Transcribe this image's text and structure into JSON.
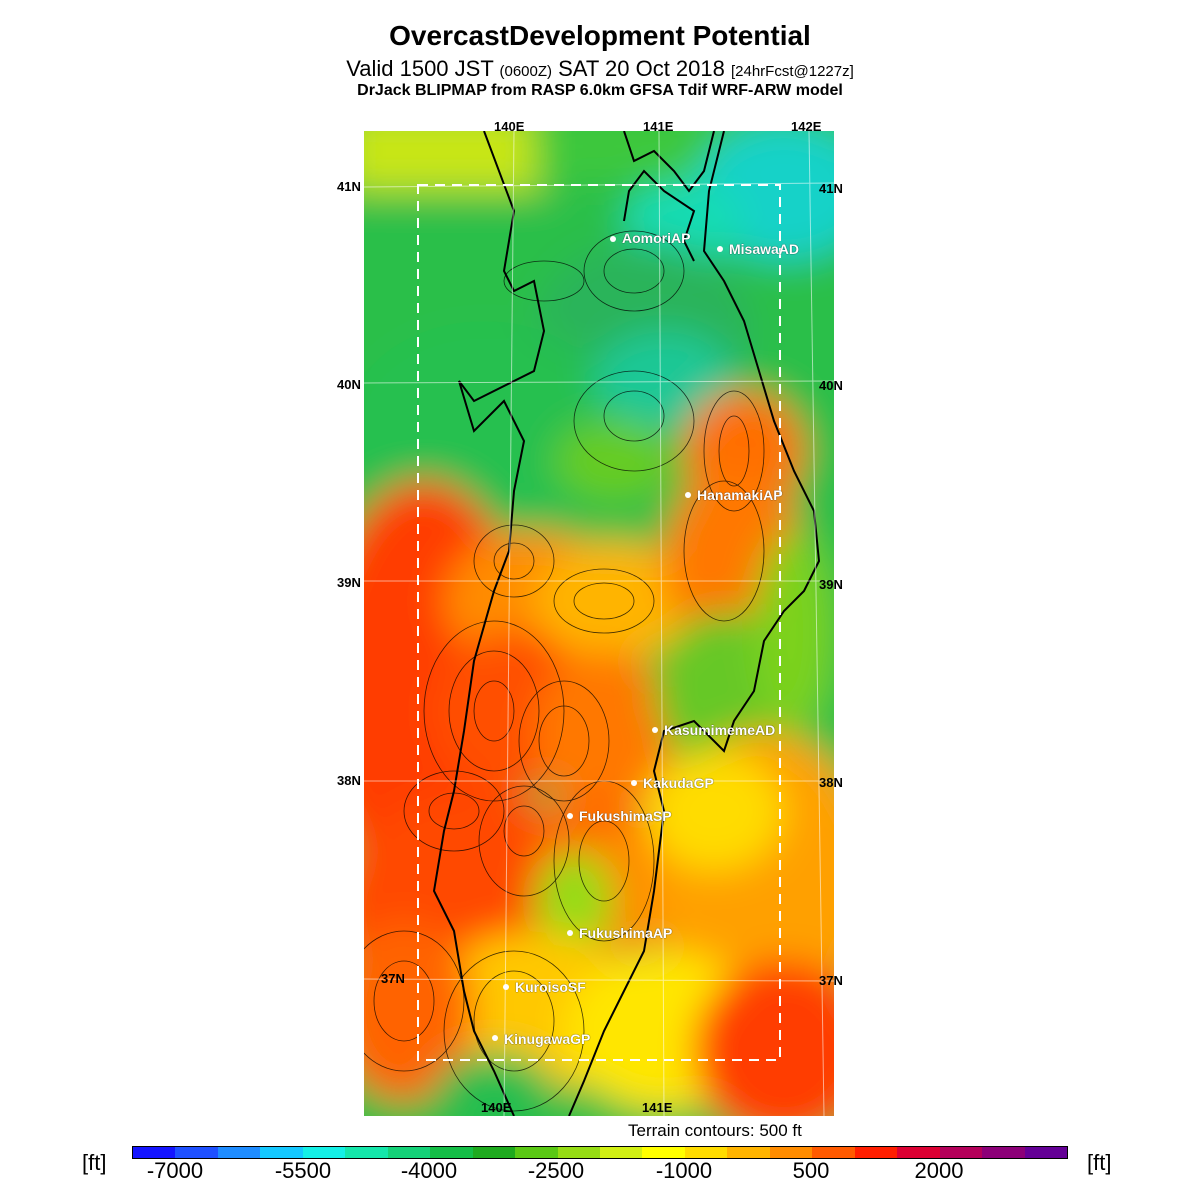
{
  "title": "OvercastDevelopment Potential",
  "subtitle": {
    "part1": "Valid 1500 JST ",
    "utc": "(0600Z)",
    "part2": " SAT 20 Oct 2018 ",
    "fcst": "[24hrFcst@1227z]"
  },
  "model_line": "DrJack BLIPMAP from RASP 6.0km GFSA Tdif WRF-ARW model",
  "longitude_labels": {
    "top": [
      "140E",
      "141E",
      "142E"
    ],
    "bottom": [
      "140E",
      "141E"
    ]
  },
  "latitude_labels": [
    "41N",
    "40N",
    "39N",
    "38N",
    "37N"
  ],
  "stations": [
    {
      "name": "AomoriAP"
    },
    {
      "name": "MisawaAD"
    },
    {
      "name": "HanamakiAP"
    },
    {
      "name": "KasumimemeAD"
    },
    {
      "name": "KakudaGP"
    },
    {
      "name": "FukushimaSP"
    },
    {
      "name": "FukushimaAP"
    },
    {
      "name": "KuroisoSF"
    },
    {
      "name": "KinugawaGP"
    }
  ],
  "terrain_note": "Terrain contours: 500 ft",
  "colorbar": {
    "unit": "[ft]",
    "tick_labels": [
      "-7000",
      "-5500",
      "-4000",
      "-2500",
      "-1000",
      "500",
      "2000"
    ],
    "colors": [
      "#1414ff",
      "#1e50ff",
      "#1e8cff",
      "#14c8ff",
      "#14f0e6",
      "#14e6aa",
      "#14d278",
      "#14be46",
      "#1eaa1e",
      "#5ac814",
      "#96dc14",
      "#d2f014",
      "#ffff00",
      "#ffdc00",
      "#ffb400",
      "#ff8c00",
      "#ff5a00",
      "#ff1e00",
      "#dc0032",
      "#b4005a",
      "#8c0078",
      "#640096"
    ]
  }
}
